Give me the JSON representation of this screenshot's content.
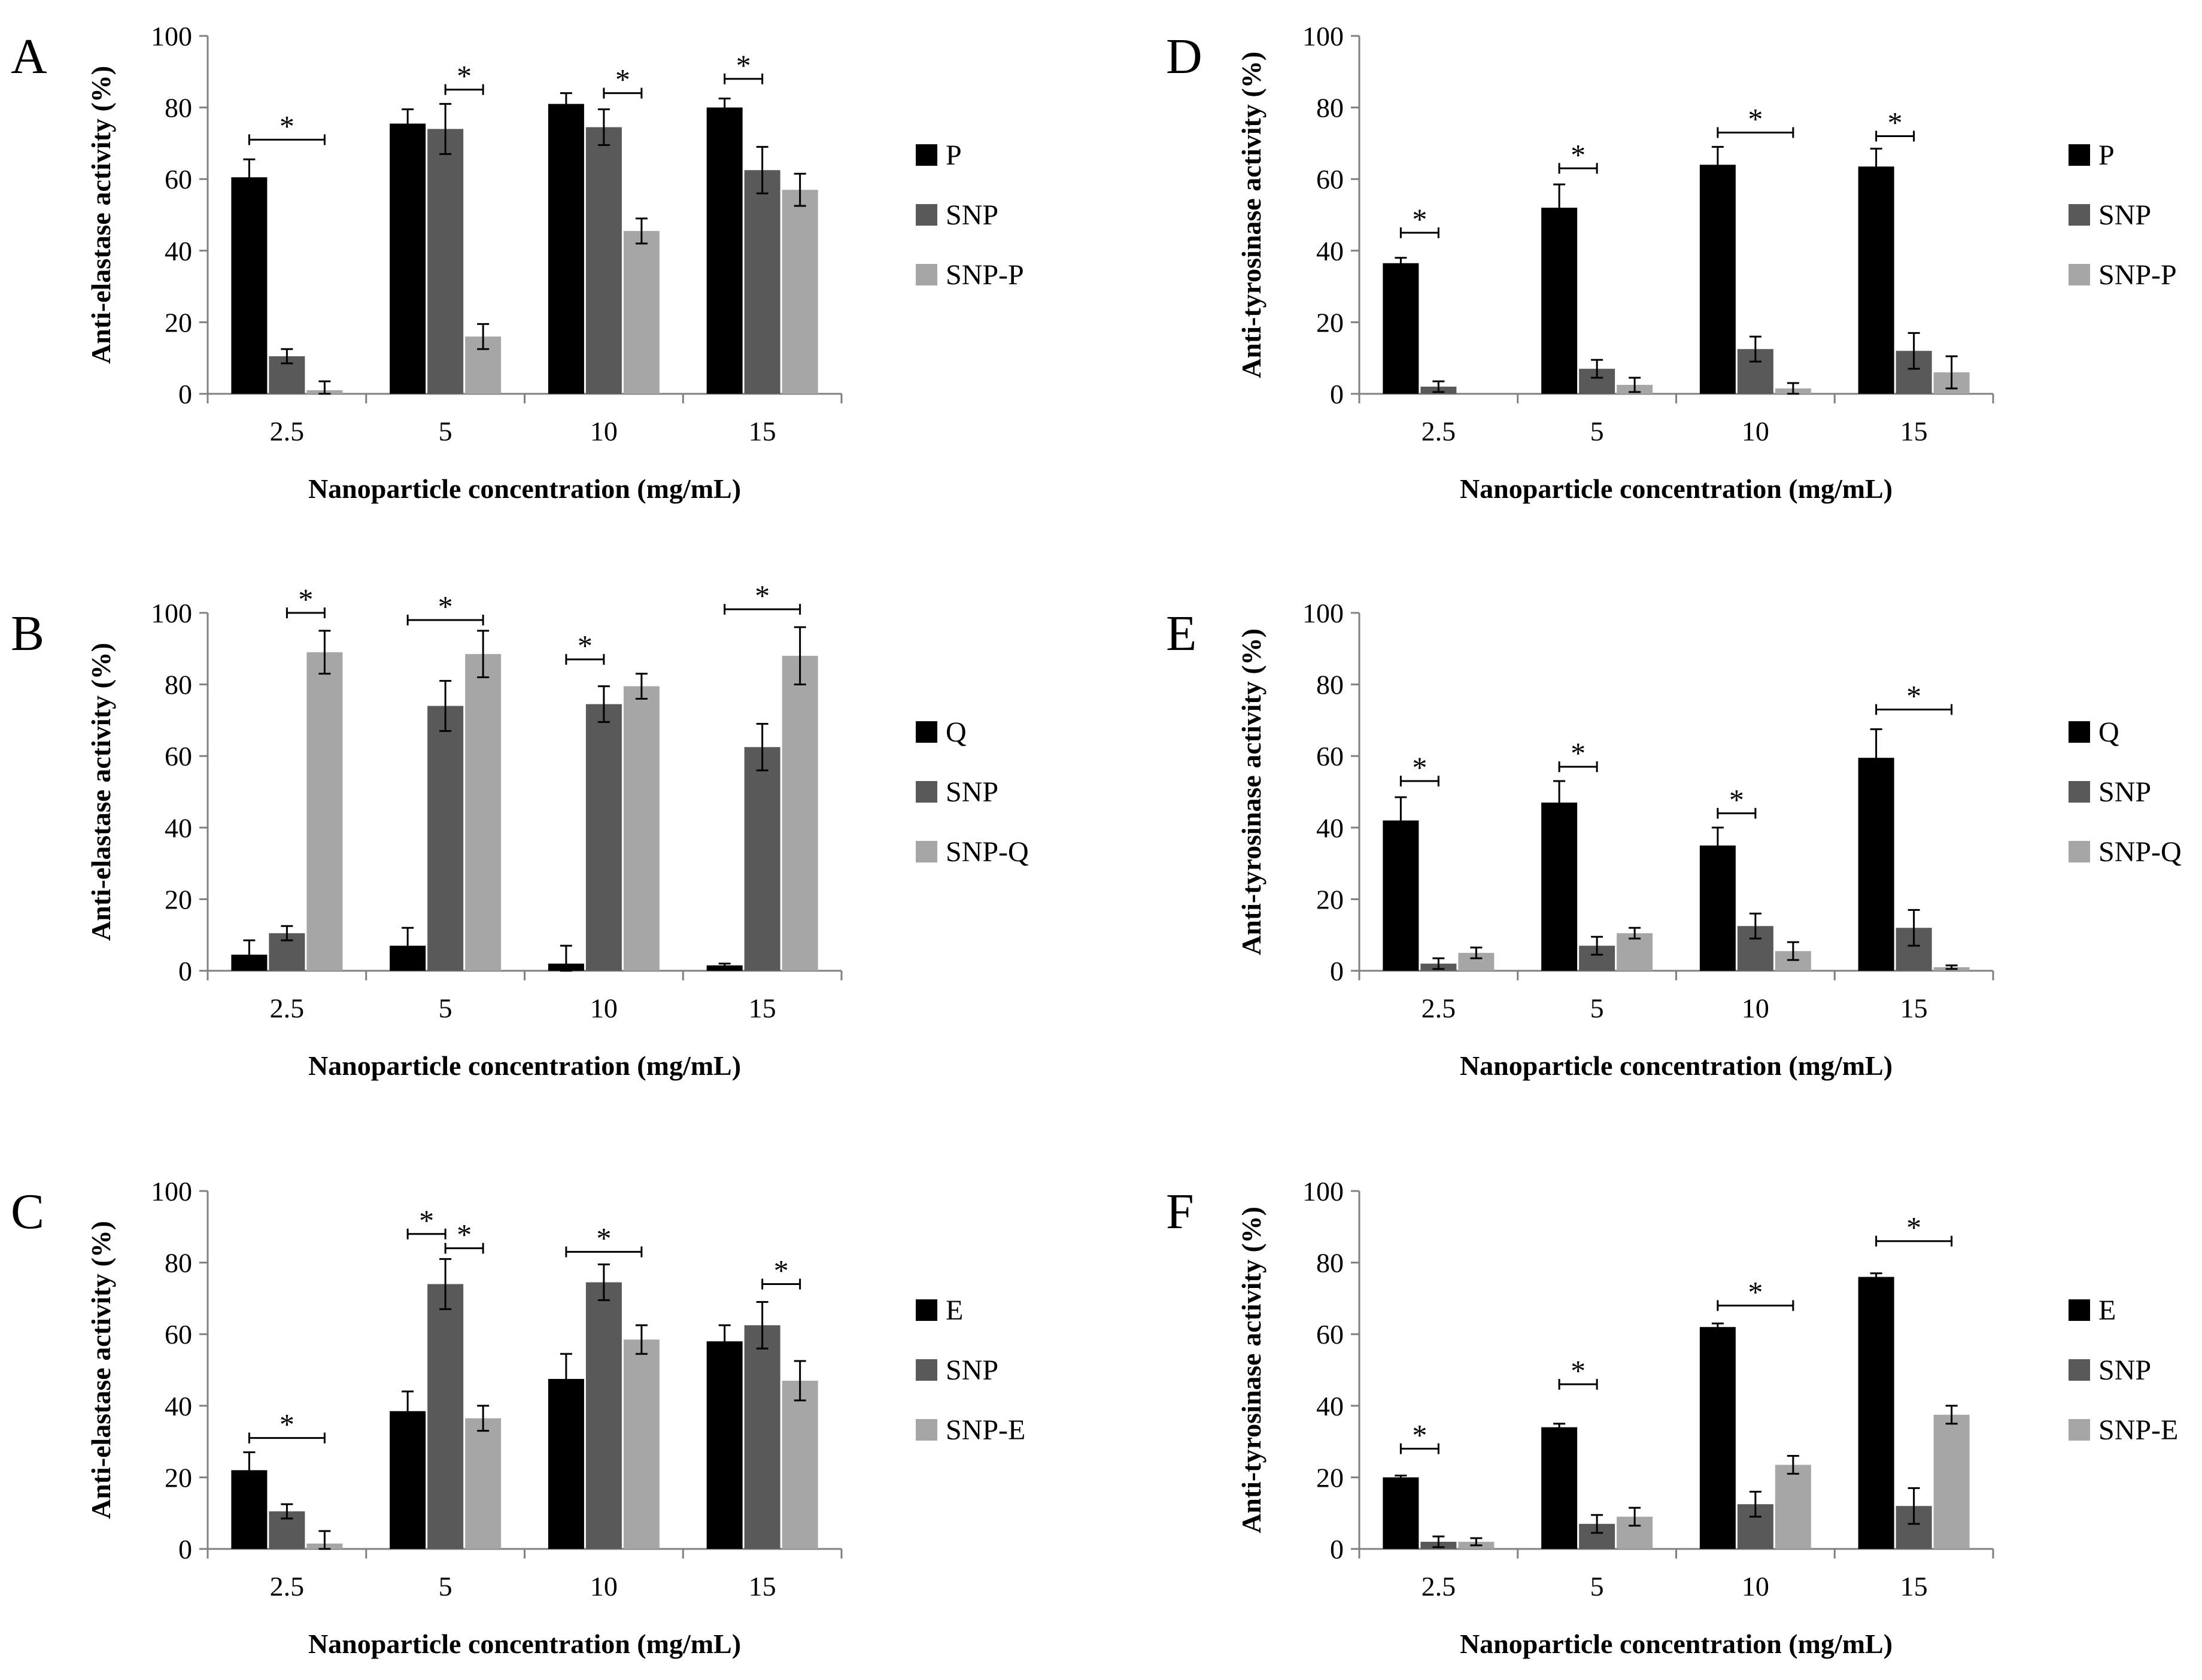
{
  "colors": {
    "black": "#000000",
    "dark_gray": "#595959",
    "light_gray": "#a6a6a6"
  },
  "chart_data": [
    {
      "panel": "A",
      "type": "bar",
      "xlabel": "Nanoparticle concentration (mg/mL)",
      "ylabel": "Anti-elastase activity (%)",
      "ylim": [
        0,
        100
      ],
      "yticks": [
        "0",
        "20",
        "40",
        "60",
        "80",
        "100"
      ],
      "categories": [
        "2.5",
        "5",
        "10",
        "15"
      ],
      "legend_placement": "right",
      "series": [
        {
          "name": "P",
          "values": [
            60.5,
            75.5,
            81,
            80
          ],
          "errors": [
            5,
            4,
            3,
            2.5
          ]
        },
        {
          "name": "SNP",
          "values": [
            10.5,
            74,
            74.5,
            62.5
          ],
          "errors": [
            2,
            7,
            5,
            6.5
          ]
        },
        {
          "name": "SNP-P",
          "values": [
            1,
            16,
            45.5,
            57
          ],
          "errors": [
            2.5,
            3.5,
            3.5,
            4.5
          ]
        }
      ],
      "significance": [
        {
          "category": 0,
          "from": 0,
          "to": 2,
          "level": 71,
          "label": "*"
        },
        {
          "category": 1,
          "from": 1,
          "to": 2,
          "level": 85,
          "label": "*"
        },
        {
          "category": 2,
          "from": 1,
          "to": 2,
          "level": 84,
          "label": "*"
        },
        {
          "category": 3,
          "from": 0,
          "to": 1,
          "level": 88,
          "label": "*"
        }
      ]
    },
    {
      "panel": "B",
      "type": "bar",
      "xlabel": "Nanoparticle concentration (mg/mL)",
      "ylabel": "Anti-elastase activity (%)",
      "ylim": [
        0,
        100
      ],
      "yticks": [
        "0",
        "20",
        "40",
        "60",
        "80",
        "100"
      ],
      "categories": [
        "2.5",
        "5",
        "10",
        "15"
      ],
      "legend_placement": "right",
      "series": [
        {
          "name": "Q",
          "values": [
            4.5,
            7,
            2,
            1.5
          ],
          "errors": [
            4,
            5,
            5,
            0.5
          ]
        },
        {
          "name": "SNP",
          "values": [
            10.5,
            74,
            74.5,
            62.5
          ],
          "errors": [
            2,
            7,
            5,
            6.5
          ]
        },
        {
          "name": "SNP-Q",
          "values": [
            89,
            88.5,
            79.5,
            88
          ],
          "errors": [
            6,
            6.5,
            3.5,
            8
          ]
        }
      ],
      "significance": [
        {
          "category": 0,
          "from": 1,
          "to": 2,
          "level": 100,
          "label": "*"
        },
        {
          "category": 1,
          "from": 0,
          "to": 2,
          "level": 98,
          "label": "*"
        },
        {
          "category": 2,
          "from": 0,
          "to": 1,
          "level": 87,
          "label": "*"
        },
        {
          "category": 3,
          "from": 0,
          "to": 2,
          "level": 101,
          "label": "*"
        }
      ]
    },
    {
      "panel": "C",
      "type": "bar",
      "xlabel": "Nanoparticle concentration (mg/mL)",
      "ylabel": "Anti-elastase activity (%)",
      "ylim": [
        0,
        100
      ],
      "yticks": [
        "0",
        "20",
        "40",
        "60",
        "80",
        "100"
      ],
      "categories": [
        "2.5",
        "5",
        "10",
        "15"
      ],
      "legend_placement": "right",
      "series": [
        {
          "name": "E",
          "values": [
            22,
            38.5,
            47.5,
            58
          ],
          "errors": [
            5,
            5.5,
            7,
            4.5
          ]
        },
        {
          "name": "SNP",
          "values": [
            10.5,
            74,
            74.5,
            62.5
          ],
          "errors": [
            2,
            7,
            5,
            6.5
          ]
        },
        {
          "name": "SNP-E",
          "values": [
            1.5,
            36.5,
            58.5,
            47
          ],
          "errors": [
            3.5,
            3.5,
            4,
            5.5
          ]
        }
      ],
      "significance": [
        {
          "category": 0,
          "from": 0,
          "to": 2,
          "level": 31,
          "label": "*"
        },
        {
          "category": 1,
          "from": 0,
          "to": 1,
          "level": 88,
          "label": "*"
        },
        {
          "category": 1,
          "from": 1,
          "to": 2,
          "level": 84,
          "label": "*"
        },
        {
          "category": 2,
          "from": 0,
          "to": 2,
          "level": 83,
          "label": "*"
        },
        {
          "category": 3,
          "from": 1,
          "to": 2,
          "level": 74,
          "label": "*"
        }
      ]
    },
    {
      "panel": "D",
      "type": "bar",
      "xlabel": "Nanoparticle concentration (mg/mL)",
      "ylabel": "Anti-tyrosinase activity (%)",
      "ylim": [
        0,
        100
      ],
      "yticks": [
        "0",
        "20",
        "40",
        "60",
        "80",
        "100"
      ],
      "categories": [
        "2.5",
        "5",
        "10",
        "15"
      ],
      "legend_placement": "right",
      "series": [
        {
          "name": "P",
          "values": [
            36.5,
            52,
            64,
            63.5
          ],
          "errors": [
            1.5,
            6.5,
            5,
            5
          ]
        },
        {
          "name": "SNP",
          "values": [
            2,
            7,
            12.5,
            12
          ],
          "errors": [
            1.5,
            2.5,
            3.5,
            5
          ]
        },
        {
          "name": "SNP-P",
          "values": [
            0,
            2.5,
            1.5,
            6
          ],
          "errors": [
            0,
            2,
            1.5,
            4.5
          ]
        }
      ],
      "significance": [
        {
          "category": 0,
          "from": 0,
          "to": 1,
          "level": 45,
          "label": "*"
        },
        {
          "category": 1,
          "from": 0,
          "to": 1,
          "level": 63,
          "label": "*"
        },
        {
          "category": 2,
          "from": 0,
          "to": 2,
          "level": 73,
          "label": "*"
        },
        {
          "category": 3,
          "from": 0,
          "to": 1,
          "level": 72,
          "label": "*"
        }
      ]
    },
    {
      "panel": "E",
      "type": "bar",
      "xlabel": "Nanoparticle concentration (mg/mL)",
      "ylabel": "Anti-tyrosinase activity (%)",
      "ylim": [
        0,
        100
      ],
      "yticks": [
        "0",
        "20",
        "40",
        "60",
        "80",
        "100"
      ],
      "categories": [
        "2.5",
        "5",
        "10",
        "15"
      ],
      "legend_placement": "right",
      "series": [
        {
          "name": "Q",
          "values": [
            42,
            47,
            35,
            59.5
          ],
          "errors": [
            6.5,
            6,
            5,
            8
          ]
        },
        {
          "name": "SNP",
          "values": [
            2,
            7,
            12.5,
            12
          ],
          "errors": [
            1.5,
            2.5,
            3.5,
            5
          ]
        },
        {
          "name": "SNP-Q",
          "values": [
            5,
            10.5,
            5.5,
            1
          ],
          "errors": [
            1.5,
            1.5,
            2.5,
            0.5
          ]
        }
      ],
      "significance": [
        {
          "category": 0,
          "from": 0,
          "to": 1,
          "level": 53,
          "label": "*"
        },
        {
          "category": 1,
          "from": 0,
          "to": 1,
          "level": 57,
          "label": "*"
        },
        {
          "category": 2,
          "from": 0,
          "to": 1,
          "level": 44,
          "label": "*"
        },
        {
          "category": 3,
          "from": 0,
          "to": 2,
          "level": 73,
          "label": "*"
        }
      ]
    },
    {
      "panel": "F",
      "type": "bar",
      "xlabel": "Nanoparticle concentration (mg/mL)",
      "ylabel": "Anti-tyrosinase activity (%)",
      "ylim": [
        0,
        100
      ],
      "yticks": [
        "0",
        "20",
        "40",
        "60",
        "80",
        "100"
      ],
      "categories": [
        "2.5",
        "5",
        "10",
        "15"
      ],
      "legend_placement": "right",
      "series": [
        {
          "name": "E",
          "values": [
            20,
            34,
            62,
            76
          ],
          "errors": [
            0.5,
            1,
            1,
            1
          ]
        },
        {
          "name": "SNP",
          "values": [
            2,
            7,
            12.5,
            12
          ],
          "errors": [
            1.5,
            2.5,
            3.5,
            5
          ]
        },
        {
          "name": "SNP-E",
          "values": [
            2,
            9,
            23.5,
            37.5
          ],
          "errors": [
            1,
            2.5,
            2.5,
            2.5
          ]
        }
      ],
      "significance": [
        {
          "category": 0,
          "from": 0,
          "to": 1,
          "level": 28,
          "label": "*"
        },
        {
          "category": 1,
          "from": 0,
          "to": 1,
          "level": 46,
          "label": "*"
        },
        {
          "category": 2,
          "from": 0,
          "to": 2,
          "level": 68,
          "label": "*"
        },
        {
          "category": 3,
          "from": 0,
          "to": 2,
          "level": 86,
          "label": "*"
        }
      ]
    }
  ]
}
